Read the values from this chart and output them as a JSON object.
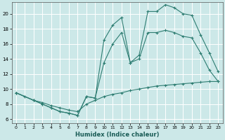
{
  "xlabel": "Humidex (Indice chaleur)",
  "bg_color": "#cce8e8",
  "grid_color": "#ffffff",
  "line_color": "#2e7d72",
  "xlim": [
    -0.5,
    23.5
  ],
  "ylim": [
    5.5,
    21.5
  ],
  "yticks": [
    6,
    8,
    10,
    12,
    14,
    16,
    18,
    20
  ],
  "xticks": [
    0,
    1,
    2,
    3,
    4,
    5,
    6,
    7,
    8,
    9,
    10,
    11,
    12,
    13,
    14,
    15,
    16,
    17,
    18,
    19,
    20,
    21,
    22,
    23
  ],
  "line1_x": [
    0,
    1,
    2,
    3,
    4,
    5,
    6,
    7,
    8,
    9,
    10,
    11,
    12,
    13,
    14,
    15,
    16,
    17,
    18,
    19,
    20,
    21,
    22,
    23
  ],
  "line1_y": [
    9.5,
    9.0,
    8.5,
    8.2,
    7.8,
    7.5,
    7.2,
    7.0,
    8.0,
    8.5,
    9.0,
    9.3,
    9.5,
    9.8,
    10.0,
    10.2,
    10.4,
    10.5,
    10.6,
    10.7,
    10.8,
    10.9,
    11.0,
    11.0
  ],
  "line2_x": [
    0,
    2,
    3,
    4,
    5,
    6,
    7,
    8,
    9,
    10,
    11,
    12,
    13,
    14,
    15,
    16,
    17,
    18,
    19,
    20,
    21,
    22,
    23
  ],
  "line2_y": [
    9.5,
    8.5,
    8.0,
    7.5,
    7.0,
    6.8,
    6.5,
    9.0,
    8.8,
    13.5,
    16.0,
    17.5,
    13.5,
    14.0,
    17.5,
    17.5,
    17.8,
    17.5,
    17.0,
    16.8,
    14.8,
    12.5,
    11.0
  ],
  "line3_x": [
    0,
    2,
    3,
    4,
    5,
    6,
    7,
    8,
    9,
    10,
    11,
    12,
    13,
    14,
    15,
    16,
    17,
    18,
    19,
    20,
    21,
    22,
    23
  ],
  "line3_y": [
    9.5,
    8.5,
    8.0,
    7.5,
    7.0,
    6.8,
    6.5,
    9.0,
    8.8,
    16.5,
    18.5,
    19.5,
    13.5,
    14.5,
    20.3,
    20.3,
    21.2,
    20.8,
    20.0,
    19.8,
    17.2,
    14.8,
    12.3
  ]
}
